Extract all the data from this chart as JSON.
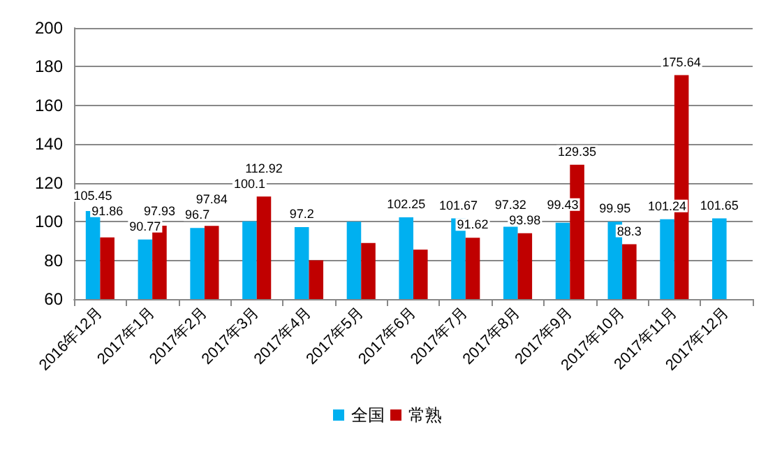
{
  "chart_data": {
    "type": "bar",
    "categories": [
      "2016年12月",
      "2017年1月",
      "2017年2月",
      "2017年3月",
      "2017年4月",
      "2017年5月",
      "2017年6月",
      "2017年7月",
      "2017年8月",
      "2017年9月",
      "2017年10月",
      "2017年11月",
      "2017年12月"
    ],
    "series": [
      {
        "name": "全国",
        "color": "#00b0f0",
        "values": [
          105.45,
          90.77,
          96.7,
          100.1,
          97.2,
          100,
          102.25,
          101.67,
          97.32,
          99.43,
          99.95,
          101.24,
          101.65
        ],
        "value_labels": [
          "105.45",
          "90.77",
          "96.7",
          "100.1",
          "97.2",
          null,
          "102.25",
          "101.67",
          "97.32",
          "99.43",
          "99.95",
          "101.24",
          "101.65"
        ]
      },
      {
        "name": "常熟",
        "color": "#c00000",
        "values": [
          91.86,
          97.93,
          97.84,
          112.92,
          80,
          89,
          85.5,
          91.62,
          93.98,
          129.35,
          88.3,
          175.64,
          null
        ],
        "value_labels": [
          "91.86",
          "97.93",
          "97.84",
          "112.92",
          null,
          null,
          null,
          "91.62",
          "93.98",
          "129.35",
          "88.3",
          "175.64",
          null
        ]
      }
    ],
    "ylim": [
      60,
      200
    ],
    "yticks": [
      60,
      80,
      100,
      120,
      140,
      160,
      180,
      200
    ],
    "grid": "y",
    "legend": "bottom"
  }
}
